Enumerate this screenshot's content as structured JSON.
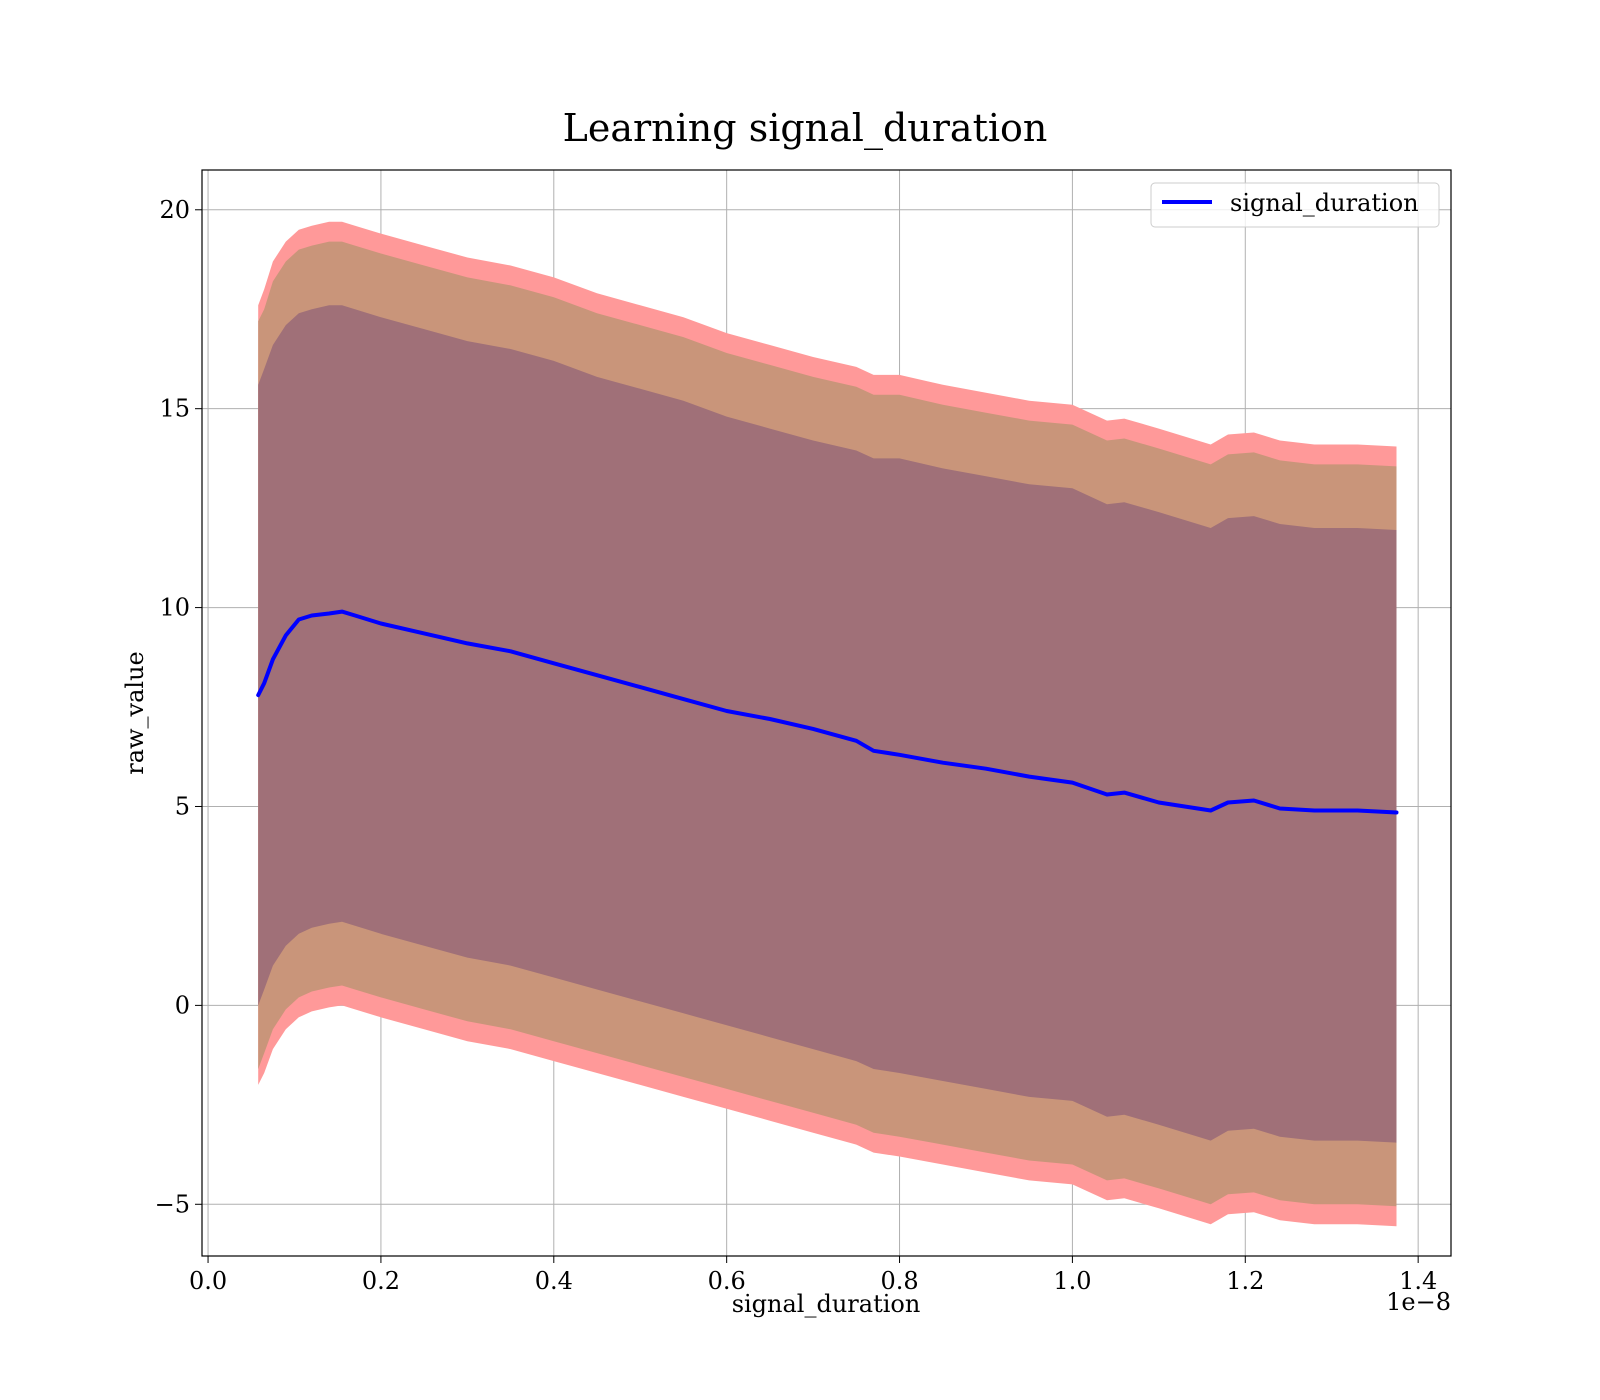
{
  "chart_data": {
    "type": "line",
    "title": "Learning signal_duration",
    "xlabel": "signal_duration",
    "ylabel": "raw_value",
    "x_offset_label": "1e−8",
    "xlim": [
      -0.007,
      1.438
    ],
    "ylim": [
      -6.3,
      21.0
    ],
    "xticks": [
      0.0,
      0.2,
      0.4,
      0.6,
      0.8,
      1.0,
      1.2,
      1.4
    ],
    "xtick_labels": [
      "0.0",
      "0.2",
      "0.4",
      "0.6",
      "0.8",
      "1.0",
      "1.2",
      "1.4"
    ],
    "yticks": [
      -5,
      0,
      5,
      10,
      15,
      20
    ],
    "ytick_labels": [
      "−5",
      "0",
      "5",
      "10",
      "15",
      "20"
    ],
    "grid": true,
    "legend": {
      "position": "top-right",
      "entries": [
        "signal_duration"
      ]
    },
    "colors": {
      "line": "#0000ff",
      "outer_band": "#ff9999",
      "middle_band": "#c9957a",
      "inner_band": "#a07078",
      "grid": "#b0b0b0"
    },
    "x": [
      0.058,
      0.065,
      0.075,
      0.09,
      0.105,
      0.12,
      0.14,
      0.155,
      0.17,
      0.2,
      0.25,
      0.3,
      0.35,
      0.4,
      0.45,
      0.5,
      0.55,
      0.6,
      0.65,
      0.7,
      0.75,
      0.77,
      0.8,
      0.85,
      0.9,
      0.95,
      1.0,
      1.04,
      1.06,
      1.1,
      1.16,
      1.18,
      1.21,
      1.24,
      1.28,
      1.33,
      1.375
    ],
    "series": [
      {
        "name": "signal_duration",
        "values": [
          7.8,
          8.1,
          8.7,
          9.3,
          9.7,
          9.8,
          9.85,
          9.9,
          9.8,
          9.6,
          9.35,
          9.1,
          8.9,
          8.6,
          8.3,
          8.0,
          7.7,
          7.4,
          7.2,
          6.95,
          6.65,
          6.4,
          6.3,
          6.1,
          5.95,
          5.75,
          5.6,
          5.3,
          5.35,
          5.1,
          4.9,
          5.1,
          5.15,
          4.95,
          4.9,
          4.9,
          4.85
        ]
      }
    ],
    "bands": {
      "outer_upper": [
        17.6,
        18.0,
        18.7,
        19.2,
        19.5,
        19.6,
        19.7,
        19.7,
        19.6,
        19.4,
        19.1,
        18.8,
        18.6,
        18.3,
        17.9,
        17.6,
        17.3,
        16.9,
        16.6,
        16.3,
        16.05,
        15.85,
        15.85,
        15.6,
        15.4,
        15.2,
        15.1,
        14.7,
        14.75,
        14.5,
        14.1,
        14.35,
        14.4,
        14.2,
        14.1,
        14.1,
        14.05
      ],
      "middle_upper": [
        17.2,
        17.5,
        18.2,
        18.7,
        19.0,
        19.1,
        19.2,
        19.2,
        19.1,
        18.9,
        18.6,
        18.3,
        18.1,
        17.8,
        17.4,
        17.1,
        16.8,
        16.4,
        16.1,
        15.8,
        15.55,
        15.35,
        15.35,
        15.1,
        14.9,
        14.7,
        14.6,
        14.2,
        14.25,
        14.0,
        13.6,
        13.85,
        13.9,
        13.7,
        13.6,
        13.6,
        13.55
      ],
      "inner_upper": [
        15.6,
        16.0,
        16.6,
        17.1,
        17.4,
        17.5,
        17.6,
        17.6,
        17.5,
        17.3,
        17.0,
        16.7,
        16.5,
        16.2,
        15.8,
        15.5,
        15.2,
        14.8,
        14.5,
        14.2,
        13.95,
        13.75,
        13.75,
        13.5,
        13.3,
        13.1,
        13.0,
        12.6,
        12.65,
        12.4,
        12.0,
        12.25,
        12.3,
        12.1,
        12.0,
        12.0,
        11.95
      ],
      "inner_lower": [
        0.0,
        0.4,
        1.0,
        1.5,
        1.8,
        1.95,
        2.05,
        2.1,
        2.0,
        1.8,
        1.5,
        1.2,
        1.0,
        0.7,
        0.4,
        0.1,
        -0.2,
        -0.5,
        -0.8,
        -1.1,
        -1.4,
        -1.6,
        -1.7,
        -1.9,
        -2.1,
        -2.3,
        -2.4,
        -2.8,
        -2.75,
        -3.0,
        -3.4,
        -3.15,
        -3.1,
        -3.3,
        -3.4,
        -3.4,
        -3.45
      ],
      "middle_lower": [
        -1.6,
        -1.2,
        -0.6,
        -0.1,
        0.2,
        0.35,
        0.45,
        0.5,
        0.4,
        0.2,
        -0.1,
        -0.4,
        -0.6,
        -0.9,
        -1.2,
        -1.5,
        -1.8,
        -2.1,
        -2.4,
        -2.7,
        -3.0,
        -3.2,
        -3.3,
        -3.5,
        -3.7,
        -3.9,
        -4.0,
        -4.4,
        -4.35,
        -4.6,
        -5.0,
        -4.75,
        -4.7,
        -4.9,
        -5.0,
        -5.0,
        -5.05
      ],
      "outer_lower": [
        -2.0,
        -1.7,
        -1.1,
        -0.6,
        -0.3,
        -0.15,
        -0.05,
        0.0,
        -0.1,
        -0.3,
        -0.6,
        -0.9,
        -1.1,
        -1.4,
        -1.7,
        -2.0,
        -2.3,
        -2.6,
        -2.9,
        -3.2,
        -3.5,
        -3.7,
        -3.8,
        -4.0,
        -4.2,
        -4.4,
        -4.5,
        -4.9,
        -4.85,
        -5.1,
        -5.5,
        -5.25,
        -5.2,
        -5.4,
        -5.5,
        -5.5,
        -5.55
      ]
    }
  }
}
